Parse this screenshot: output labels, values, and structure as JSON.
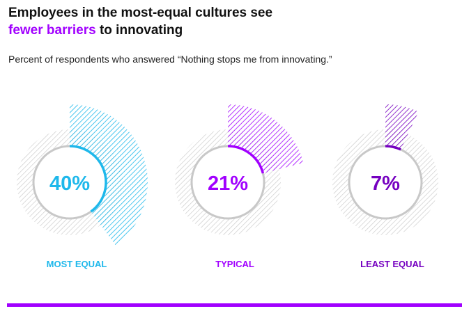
{
  "title": {
    "line1": "Employees in the most-equal cultures see",
    "highlight": "fewer barriers",
    "rest": " to innovating",
    "highlight_color": "#a100ff"
  },
  "subtitle": "Percent of respondents who answered “Nothing stops me from innovating.”",
  "chart_data": {
    "type": "pie",
    "title": "Employees in the most-equal cultures see fewer barriers to innovating",
    "subtitle": "Percent of respondents who answered “Nothing stops me from innovating.”",
    "unit": "%",
    "series": [
      {
        "name": "MOST EQUAL",
        "value": 40,
        "label": "40%",
        "color": "#1eb8eb"
      },
      {
        "name": "TYPICAL",
        "value": 21,
        "label": "21%",
        "color": "#a100ff"
      },
      {
        "name": "LEAST EQUAL",
        "value": 7,
        "label": "7%",
        "color": "#7500c0"
      }
    ],
    "track_color": "#cccccc",
    "ring_color": "#c8c8c8"
  },
  "footer_rule_color": "#a100ff"
}
